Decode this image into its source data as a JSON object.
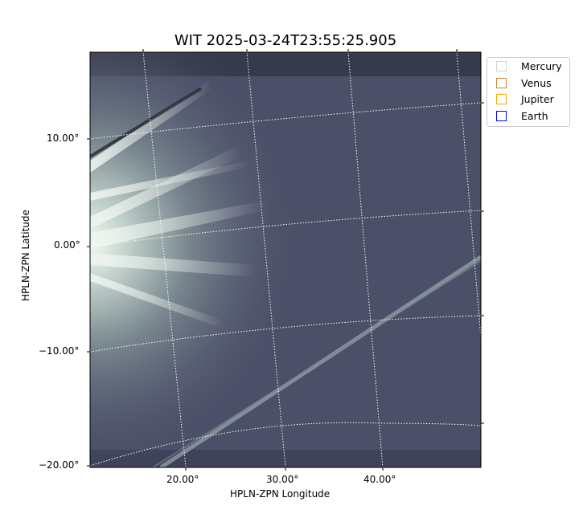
{
  "chart_data": {
    "type": "heatmap",
    "title": "WIT 2025-03-24T23:55:25.905",
    "xlabel": "HPLN-ZPN Longitude",
    "ylabel": "HPLN-ZPN Latitude",
    "x_tick_labels": [
      "20.00°",
      "30.00°",
      "40.00°"
    ],
    "y_tick_labels": [
      "10.00°",
      "0.00°",
      "−10.00°",
      "−20.00°"
    ],
    "grid": true,
    "colormap": "bone",
    "legend_position": "outside-top-right",
    "legend": [
      {
        "name": "Mercury",
        "color": "#d3d3d3"
      },
      {
        "name": "Venus",
        "color": "#cd853f"
      },
      {
        "name": "Jupiter",
        "color": "#ffa500"
      },
      {
        "name": "Earth",
        "color": "#0000ff"
      }
    ]
  }
}
